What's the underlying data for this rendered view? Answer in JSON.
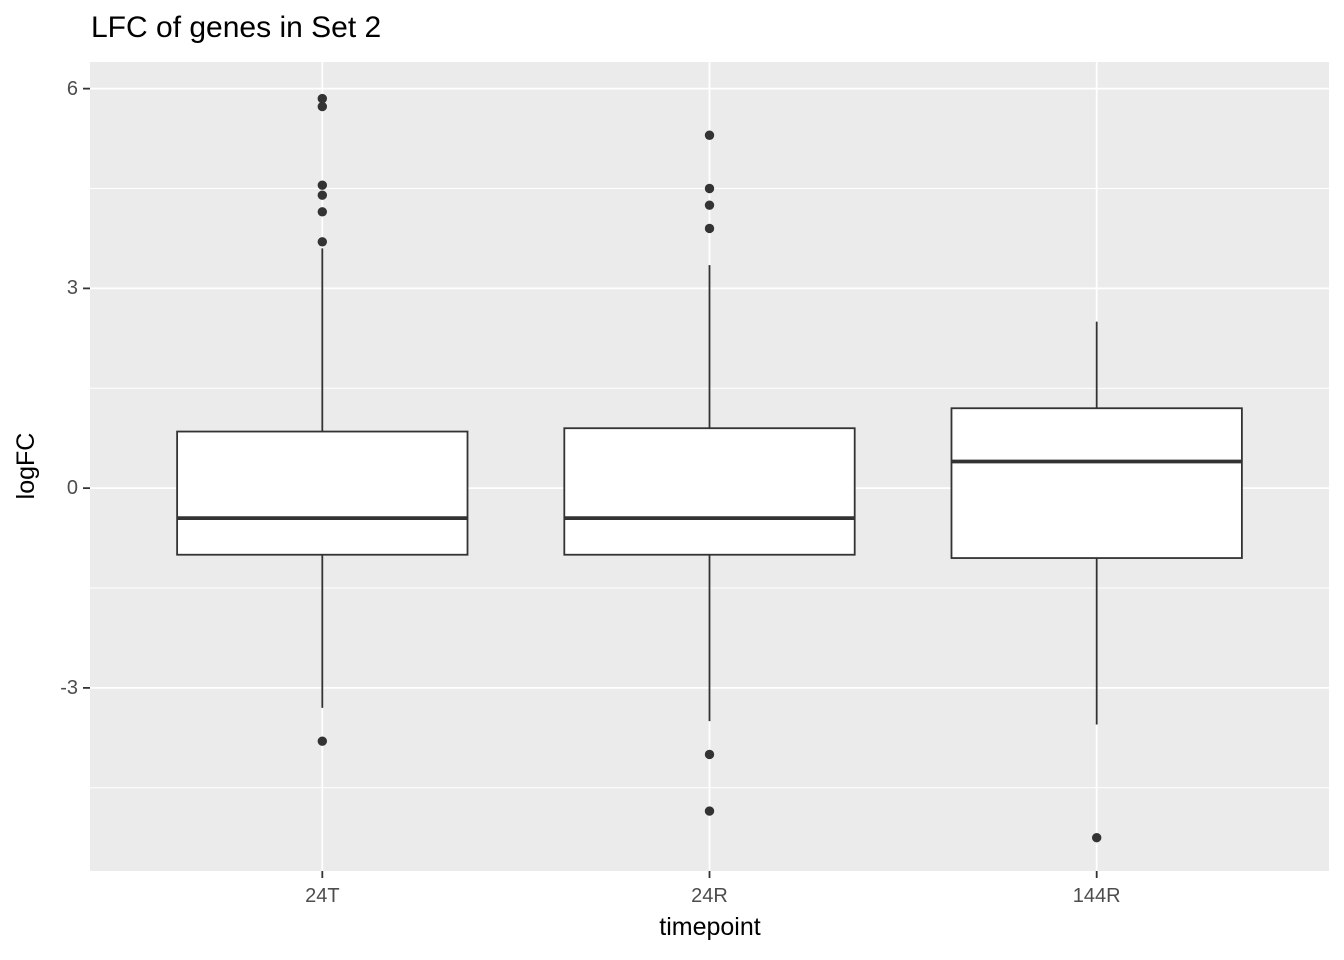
{
  "chart_data": {
    "type": "boxplot",
    "title": "LFC of genes in Set 2",
    "xlabel": "timepoint",
    "ylabel": "logFC",
    "categories": [
      "24T",
      "24R",
      "144R"
    ],
    "x_tick_labels": [
      "24T",
      "24R",
      "144R"
    ],
    "y_ticks": [
      6,
      3,
      0,
      -3
    ],
    "y_tick_labels": [
      "6",
      "3",
      "0",
      "-3"
    ],
    "y_minor_gridlines": [
      4.5,
      1.5,
      -1.5,
      -4.5
    ],
    "ylim": [
      -5.75,
      6.4
    ],
    "legend": "none",
    "grid": "white major horizontal lines at y ticks, white minor horizontal lines between, white vertical line at each category center",
    "series": [
      {
        "category": "24T",
        "whisker_low": -3.3,
        "q1": -1.0,
        "median": -0.45,
        "q3": 0.85,
        "whisker_high": 3.6,
        "outliers": [
          5.85,
          5.73,
          4.55,
          4.4,
          4.15,
          3.7,
          -3.8
        ]
      },
      {
        "category": "24R",
        "whisker_low": -3.5,
        "q1": -1.0,
        "median": -0.45,
        "q3": 0.9,
        "whisker_high": 3.35,
        "outliers": [
          5.3,
          4.5,
          4.25,
          3.9,
          -4.0,
          -4.85
        ]
      },
      {
        "category": "144R",
        "whisker_low": -3.55,
        "q1": -1.05,
        "median": 0.4,
        "q3": 1.2,
        "whisker_high": 2.5,
        "outliers": [
          -5.25
        ]
      }
    ],
    "colors": {
      "panel_bg": "#EBEBEB",
      "grid": "#FFFFFF",
      "box_stroke": "#333333",
      "box_fill": "#FFFFFF",
      "tick_text": "#4D4D4D",
      "title_text": "#000000"
    }
  }
}
